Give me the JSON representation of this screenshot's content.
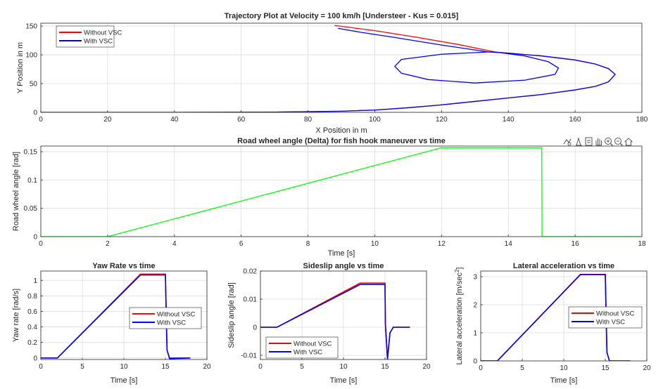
{
  "toolbar": {
    "icons": [
      "export-icon",
      "brush-icon",
      "datatip-icon",
      "pan-icon",
      "zoom-in-icon",
      "zoom-out-icon",
      "home-icon"
    ]
  },
  "chart_data": [
    {
      "type": "line",
      "title": "Trajectory Plot at Velocity = 100 km/h [Understeer - Kus = 0.015]",
      "xlabel": "X Position in m",
      "ylabel": "Y Position in m",
      "xlim": [
        0,
        180
      ],
      "ylim": [
        0,
        155
      ],
      "xticks": [
        0,
        20,
        40,
        60,
        80,
        100,
        120,
        140,
        160,
        180
      ],
      "yticks": [
        0,
        50,
        100,
        150
      ],
      "grid": true,
      "legend": "top-left",
      "series": [
        {
          "name": "Without VSC",
          "color": "#ff0000",
          "x": [
            0,
            40,
            70,
            90,
            100,
            110,
            120,
            130,
            140,
            150,
            160,
            166,
            170,
            172,
            170,
            166,
            160,
            150,
            140,
            136,
            125,
            112,
            100,
            88
          ],
          "y": [
            0,
            0,
            0.5,
            2,
            4,
            8,
            13,
            19,
            25,
            31,
            39,
            45,
            53,
            66,
            76,
            84,
            91,
            98,
            103,
            105,
            118,
            131,
            142,
            151
          ]
        },
        {
          "name": "With VSC",
          "color": "#0000ff",
          "x": [
            0,
            40,
            70,
            90,
            100,
            110,
            120,
            130,
            140,
            150,
            160,
            166,
            170,
            172,
            170,
            166,
            160,
            150,
            140,
            134,
            120,
            108,
            106,
            108,
            116,
            130,
            145,
            154,
            155,
            152,
            145,
            136,
            134,
            120,
            105,
            96,
            89
          ],
          "y": [
            0,
            0,
            0.5,
            2,
            4,
            8,
            13,
            19,
            25,
            31,
            39,
            45,
            53,
            66,
            76,
            84,
            91,
            98,
            103,
            105,
            101,
            92,
            80,
            68,
            57,
            51,
            56,
            66,
            77,
            88,
            98,
            105,
            105,
            117,
            131,
            139,
            146
          ]
        }
      ]
    },
    {
      "type": "line",
      "title": "Road wheel angle (Delta) for fish hook maneuver vs time",
      "xlabel": "Time [s]",
      "ylabel": "Road wheel angle [rad]",
      "xlim": [
        0,
        18
      ],
      "ylim": [
        0,
        0.16
      ],
      "xticks": [
        0,
        2,
        4,
        6,
        8,
        10,
        12,
        14,
        16,
        18
      ],
      "yticks": [
        0,
        0.05,
        0.1,
        0.15
      ],
      "grid": true,
      "series": [
        {
          "color": "#00ff00",
          "x": [
            0,
            2,
            12,
            15,
            15.01,
            18
          ],
          "y": [
            0,
            0,
            0.157,
            0.157,
            0,
            0
          ]
        }
      ]
    },
    {
      "type": "line",
      "title": "Yaw Rate vs time",
      "xlabel": "Time [s]",
      "ylabel": "Yaw rate [rad/s]",
      "xlim": [
        0,
        20
      ],
      "ylim": [
        -0.02,
        1.12
      ],
      "xticks": [
        0,
        5,
        10,
        15,
        20
      ],
      "yticks": [
        0,
        0.2,
        0.4,
        0.6,
        0.8,
        1
      ],
      "grid": true,
      "legend": "right",
      "series": [
        {
          "name": "Without VSC",
          "color": "#ff0000",
          "x": [
            0,
            2,
            12,
            15,
            15.2,
            15.5,
            18
          ],
          "y": [
            0,
            0,
            1.08,
            1.08,
            0.1,
            0,
            0
          ]
        },
        {
          "name": "With VSC",
          "color": "#0000ff",
          "x": [
            0,
            2,
            12,
            15,
            15.2,
            15.5,
            18
          ],
          "y": [
            0,
            0,
            1.07,
            1.07,
            0.1,
            -0.01,
            0
          ]
        }
      ]
    },
    {
      "type": "line",
      "title": "Sideslip angle vs time",
      "xlabel": "Time [s]",
      "ylabel": "Sideslip angle [rad]",
      "xlim": [
        0,
        20
      ],
      "ylim": [
        -0.0115,
        0.02
      ],
      "xticks": [
        0,
        5,
        10,
        15,
        20
      ],
      "yticks": [
        -0.01,
        0,
        0.01,
        0.02
      ],
      "grid": true,
      "legend": "bottom-center",
      "series": [
        {
          "name": "Without VSC",
          "color": "#ff0000",
          "x": [
            0,
            2,
            12,
            15,
            15.05,
            15.3,
            15.6,
            16,
            18
          ],
          "y": [
            0,
            0,
            0.0157,
            0.0157,
            0.001,
            -0.011,
            -0.002,
            0,
            0
          ]
        },
        {
          "name": "With VSC",
          "color": "#0000ff",
          "x": [
            0,
            2,
            12,
            15,
            15.05,
            15.3,
            15.6,
            16,
            18
          ],
          "y": [
            0,
            0,
            0.0152,
            0.0152,
            0.001,
            -0.0115,
            -0.002,
            0,
            0
          ]
        }
      ]
    },
    {
      "type": "line",
      "title": "Lateral acceleration vs time",
      "xlabel": "Time [s]",
      "ylabel": "Lateral acceleration [m/sec2]",
      "xlim": [
        0,
        20
      ],
      "ylim": [
        0,
        3.2
      ],
      "xticks": [
        0,
        5,
        10,
        15,
        20
      ],
      "yticks": [
        0,
        1,
        2,
        3
      ],
      "grid": true,
      "legend": "right",
      "series": [
        {
          "name": "Without VSC",
          "color": "#ff0000",
          "x": [
            0,
            2,
            12,
            15,
            15.2,
            15.5,
            18
          ],
          "y": [
            0,
            0,
            3.08,
            3.08,
            0.3,
            0,
            0
          ]
        },
        {
          "name": "With VSC",
          "color": "#0000ff",
          "x": [
            0,
            2,
            12,
            15,
            15.2,
            15.5,
            18
          ],
          "y": [
            0,
            0,
            3.07,
            3.07,
            0.3,
            0,
            0
          ]
        }
      ]
    }
  ]
}
